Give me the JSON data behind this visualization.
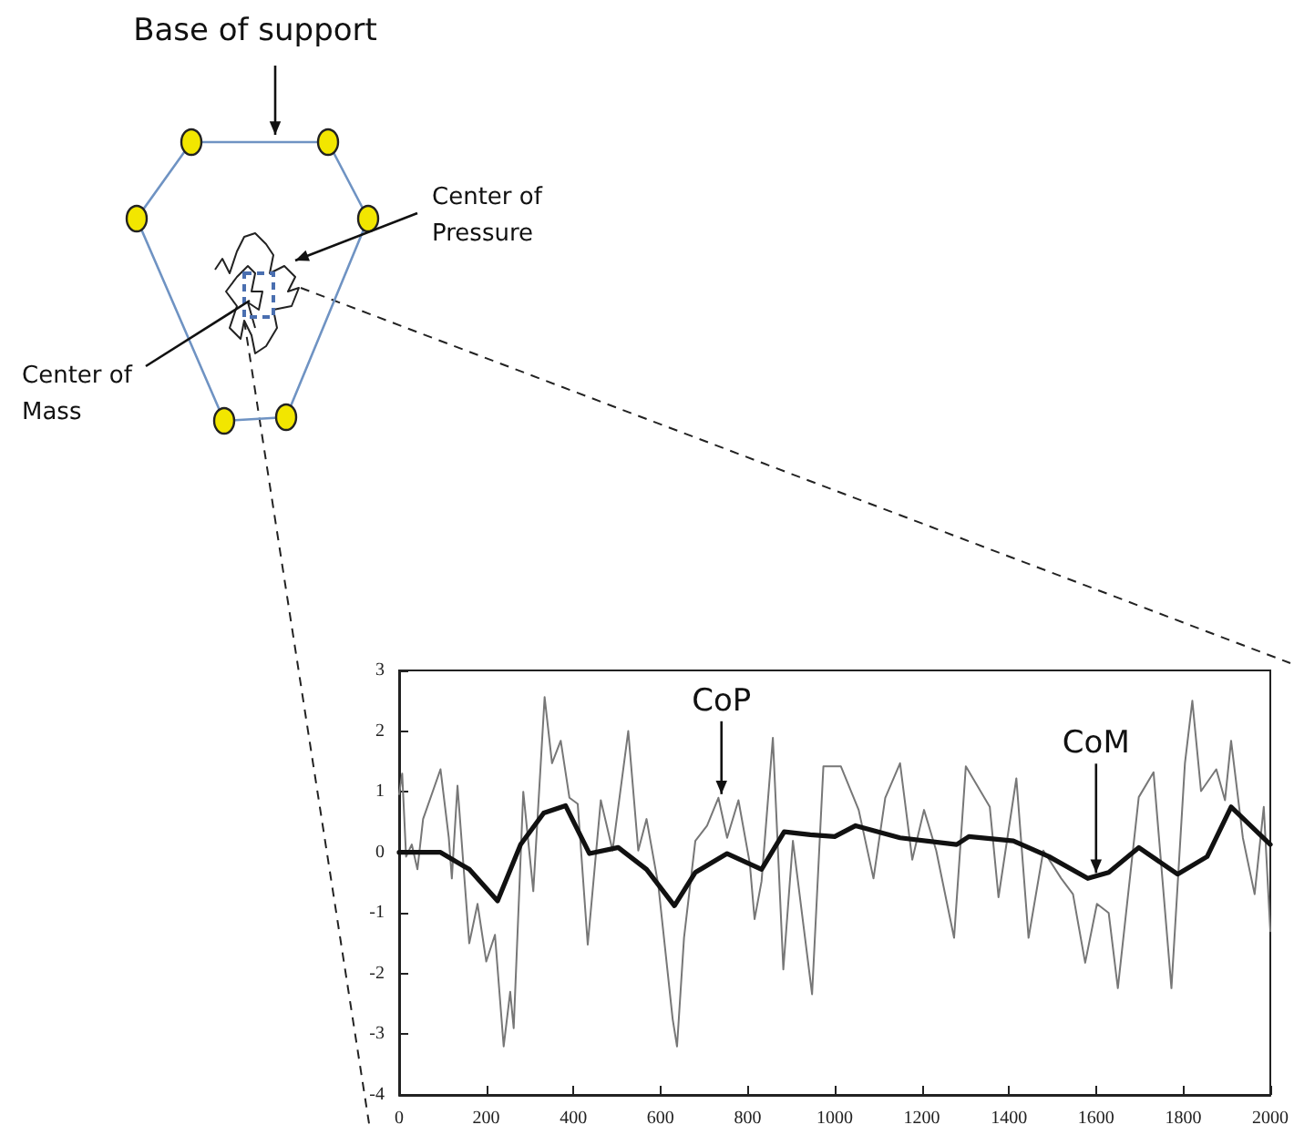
{
  "chart_data": {
    "type": "line",
    "annotations": [
      "Base of support",
      "Center of Pressure",
      "Center of Mass",
      {
        "text": "CoP",
        "x": 740,
        "y": 0.9
      },
      {
        "text": "CoM",
        "x": 1600,
        "y": -0.4
      }
    ],
    "series": [
      {
        "color": "#777777",
        "x": [
          0,
          7,
          16,
          29,
          42,
          55,
          95,
          114,
          121,
          134,
          161,
          180,
          200,
          220,
          240,
          255,
          263,
          285,
          308,
          334,
          351,
          371,
          391,
          410,
          433,
          463,
          490,
          526,
          549,
          568,
          595,
          628,
          638,
          654,
          680,
          707,
          733,
          753,
          779,
          805,
          816,
          832,
          858,
          882,
          904,
          948,
          974,
          1014,
          1055,
          1089,
          1116,
          1150,
          1178,
          1205,
          1233,
          1274,
          1301,
          1356,
          1376,
          1417,
          1445,
          1479,
          1520,
          1547,
          1575,
          1602,
          1629,
          1650,
          1698,
          1732,
          1773,
          1804,
          1821,
          1841,
          1876,
          1896,
          1910,
          1937,
          1964,
          1985,
          2000
        ],
        "values": [
          0.96,
          1.3,
          -0.07,
          0.13,
          -0.28,
          0.55,
          1.37,
          0.24,
          -0.43,
          1.1,
          -1.5,
          -0.85,
          -1.8,
          -1.36,
          -3.2,
          -2.3,
          -2.9,
          1.0,
          -0.64,
          2.56,
          1.47,
          1.84,
          0.9,
          0.8,
          -1.52,
          0.86,
          0.03,
          2.0,
          0.03,
          0.55,
          -0.54,
          -2.75,
          -3.2,
          -1.41,
          0.19,
          0.44,
          0.9,
          0.24,
          0.86,
          -0.18,
          -1.1,
          -0.48,
          1.89,
          -1.93,
          0.19,
          -2.34,
          1.42,
          1.42,
          0.7,
          -0.43,
          0.9,
          1.47,
          -0.12,
          0.7,
          0.03,
          -1.41,
          1.42,
          0.75,
          -0.74,
          1.22,
          -1.41,
          0.03,
          -0.43,
          -0.69,
          -1.82,
          -0.85,
          -1.0,
          -2.24,
          0.91,
          1.32,
          -2.24,
          1.47,
          2.5,
          1.01,
          1.37,
          0.86,
          1.84,
          0.24,
          -0.69,
          0.75,
          -1.3
        ]
      },
      {
        "color": "#111111",
        "x": [
          0,
          95,
          161,
          226,
          279,
          332,
          382,
          437,
          503,
          568,
          632,
          680,
          753,
          832,
          884,
          944,
          1000,
          1048,
          1150,
          1280,
          1308,
          1410,
          1492,
          1581,
          1629,
          1698,
          1787,
          1855,
          1910,
          2000
        ],
        "values": [
          0,
          0,
          -0.28,
          -0.8,
          0.13,
          0.65,
          0.77,
          -0.02,
          0.08,
          -0.28,
          -0.88,
          -0.33,
          -0.02,
          -0.28,
          0.34,
          0.29,
          0.26,
          0.44,
          0.24,
          0.13,
          0.26,
          0.19,
          -0.07,
          -0.43,
          -0.33,
          0.08,
          -0.36,
          -0.07,
          0.75,
          0.13
        ]
      }
    ],
    "xlim": [
      0,
      2000
    ],
    "xticks": [
      0,
      200,
      400,
      600,
      800,
      1000,
      1200,
      1400,
      1600,
      1800,
      2000
    ],
    "ylim": [
      -4,
      3
    ],
    "yticks": [
      -4,
      -3,
      -2,
      -1,
      0,
      1,
      2,
      3
    ],
    "grid": false,
    "marker": "none",
    "line_style": "solid"
  }
}
